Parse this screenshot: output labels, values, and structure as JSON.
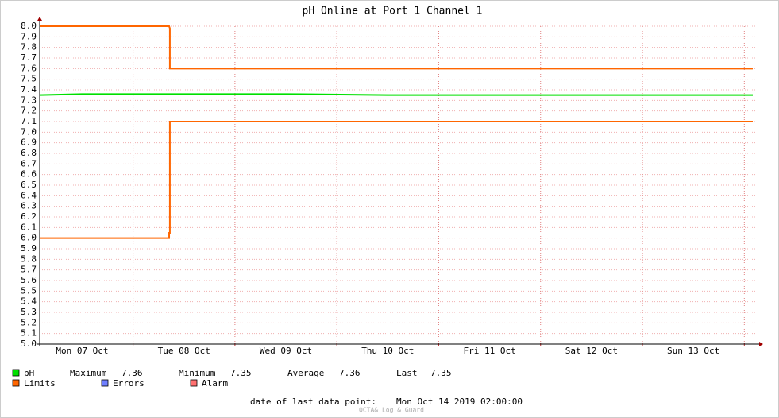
{
  "chart_data": {
    "type": "line",
    "title": "pH Online at Port 1 Channel 1",
    "xlim": [
      "2019-10-07T02:00",
      "2019-10-14T02:00"
    ],
    "xticks": [
      {
        "value": "2019-10-07T12:00",
        "label": "Mon 07 Oct"
      },
      {
        "value": "2019-10-08T12:00",
        "label": "Tue 08 Oct"
      },
      {
        "value": "2019-10-09T12:00",
        "label": "Wed 09 Oct"
      },
      {
        "value": "2019-10-10T12:00",
        "label": "Thu 10 Oct"
      },
      {
        "value": "2019-10-11T12:00",
        "label": "Fri 11 Oct"
      },
      {
        "value": "2019-10-12T12:00",
        "label": "Sat 12 Oct"
      },
      {
        "value": "2019-10-13T12:00",
        "label": "Sun 13 Oct"
      }
    ],
    "xgrid": [
      "2019-10-08T00:00",
      "2019-10-09T00:00",
      "2019-10-10T00:00",
      "2019-10-11T00:00",
      "2019-10-12T00:00",
      "2019-10-13T00:00",
      "2019-10-14T00:00"
    ],
    "ylim": [
      5,
      8
    ],
    "yticks": [
      {
        "value": 5,
        "label": "5.0"
      },
      5.1,
      5.2,
      5.3,
      5.4,
      5.5,
      5.6,
      5.7,
      5.8,
      5.9,
      {
        "value": 6,
        "label": "6.0"
      },
      6.1,
      6.2,
      6.3,
      6.4,
      6.5,
      6.6,
      6.7,
      6.8,
      6.9,
      {
        "value": 7,
        "label": "7.0"
      },
      7.1,
      7.2,
      7.3,
      7.4,
      7.5,
      7.6,
      7.7,
      7.8,
      7.9,
      {
        "value": 8,
        "label": "8.0"
      }
    ],
    "grid": true,
    "series": [
      {
        "name": "pH",
        "color": "#00e000",
        "x": [
          "2019-10-07T02:00",
          "2019-10-07T12:00",
          "2019-10-08T12:00",
          "2019-10-09T00:00",
          "2019-10-09T12:00",
          "2019-10-10T12:00",
          "2019-10-11T12:00",
          "2019-10-12T12:00",
          "2019-10-13T12:00",
          "2019-10-14T02:00"
        ],
        "values": [
          7.35,
          7.36,
          7.36,
          7.36,
          7.36,
          7.35,
          7.35,
          7.35,
          7.35,
          7.35
        ]
      },
      {
        "name": "Limits",
        "color": "#ff6600",
        "x": [
          "2019-10-07T02:00",
          "2019-10-08T08:30",
          "2019-10-08T08:40",
          "2019-10-08T08:40",
          "2019-10-14T02:00",
          null,
          "2019-10-07T02:00",
          "2019-10-08T08:30",
          "2019-10-08T08:30",
          "2019-10-08T08:40",
          "2019-10-08T08:40",
          "2019-10-14T02:00"
        ],
        "values": [
          8,
          8,
          7.98,
          7.6,
          7.6,
          null,
          6,
          6,
          6.05,
          6.05,
          7.1,
          7.1
        ]
      },
      {
        "name": "Errors",
        "color": "#6f7fff",
        "x": [],
        "values": []
      },
      {
        "name": "Alarm",
        "color": "#ff7070",
        "x": [],
        "values": []
      }
    ],
    "stats": [
      {
        "label": "Maximum",
        "value": "7.36"
      },
      {
        "label": "Minimum",
        "value": "7.35"
      },
      {
        "label": "Average",
        "value": "7.36"
      },
      {
        "label": "Last",
        "value": "7.35"
      }
    ],
    "footer": {
      "label": "date of last data point:",
      "value": "Mon Oct 14 2019 02:00:00"
    },
    "watermark": "OCTA& Log & Guard"
  }
}
